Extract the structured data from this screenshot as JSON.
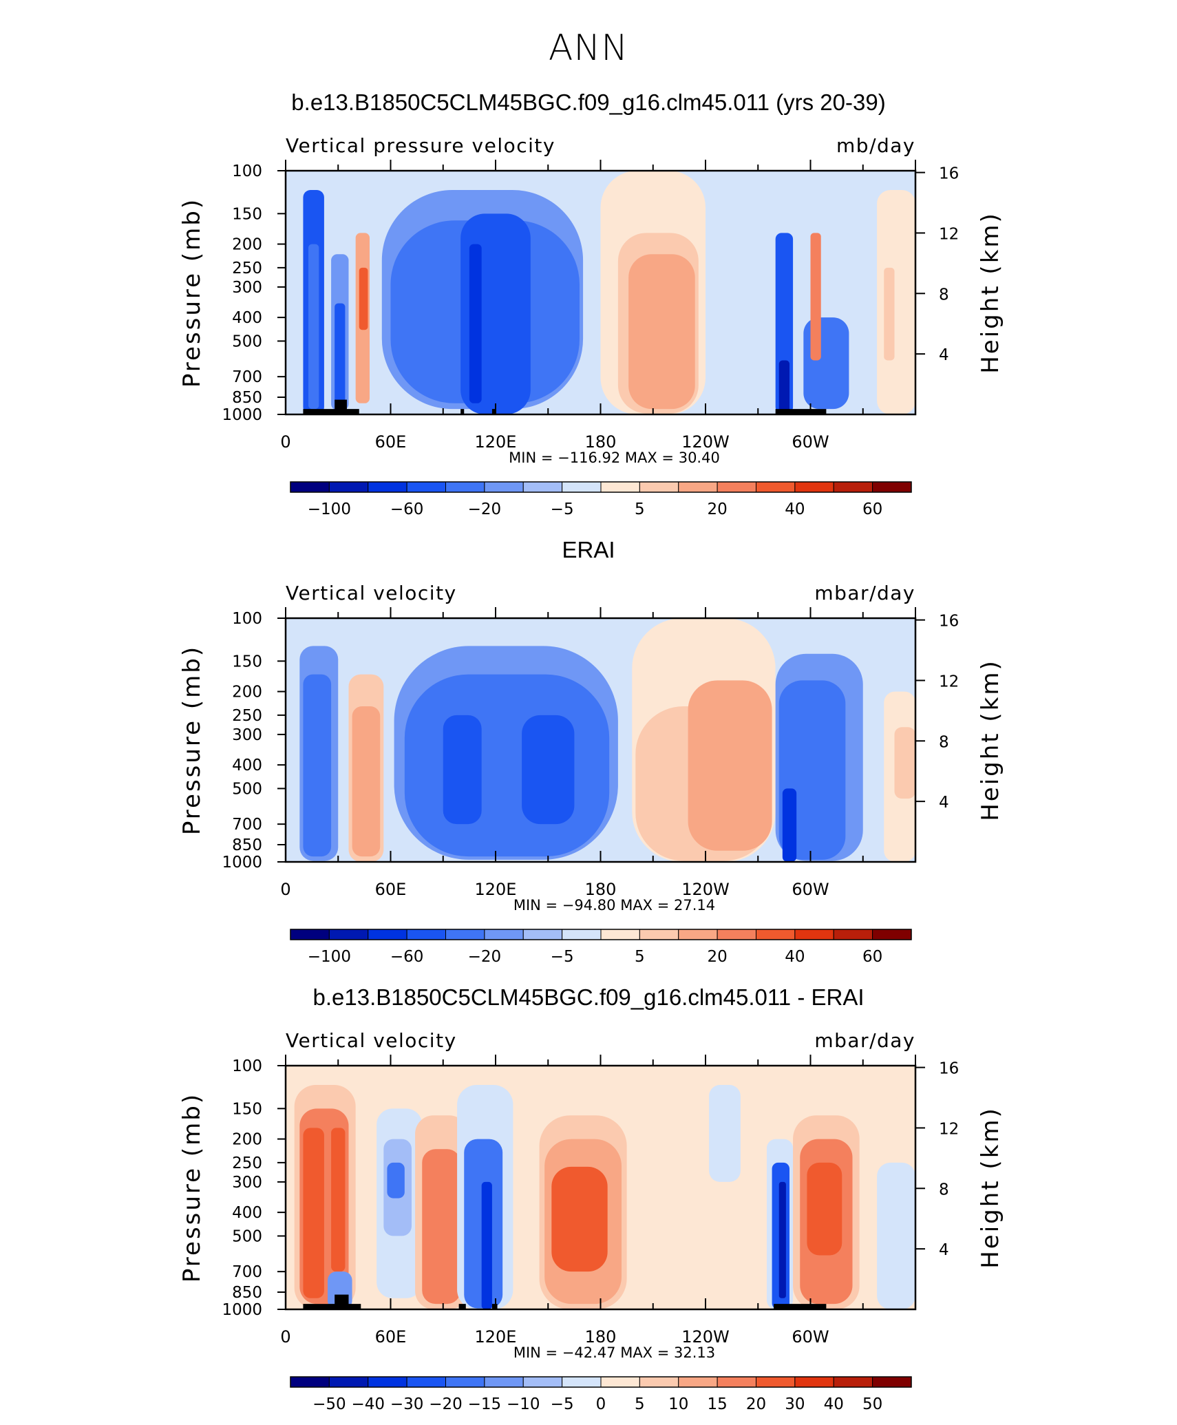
{
  "main_title": "ANN",
  "colors": {
    "model_bar": [
      "#00007f",
      "#0019b2",
      "#0033e0",
      "#1a55f2",
      "#3f75f5",
      "#6f97f5",
      "#a3bdf7",
      "#d4e4fa",
      "#fde7d4",
      "#fbcaaf",
      "#f8a785",
      "#f4805d",
      "#f05a2e",
      "#e1350f",
      "#b81f0a",
      "#7f0000"
    ],
    "diff_bar": [
      "#00007f",
      "#0019b2",
      "#0033e0",
      "#1a55f2",
      "#3f75f5",
      "#6f97f5",
      "#a3bdf7",
      "#d4e4fa",
      "#fde7d4",
      "#fbcaaf",
      "#f8a785",
      "#f4805d",
      "#f05a2e",
      "#e1350f",
      "#b81f0a",
      "#7f0000"
    ]
  },
  "chart_data": [
    {
      "type": "heatmap",
      "title": "b.e13.B1850C5CLM45BGC.f09_g16.clm45.011 (yrs 20-39)",
      "left_label": "Vertical pressure velocity",
      "right_label": "mb/day",
      "ylabel": "Pressure (mb)",
      "y2label": "Height (km)",
      "x_ticks": [
        "0",
        "60E",
        "120E",
        "180",
        "120W",
        "60W"
      ],
      "x_tick_values": [
        0,
        60,
        120,
        180,
        240,
        300
      ],
      "xlim": [
        0,
        360
      ],
      "y_ticks": [
        "100",
        "150",
        "200",
        "250",
        "300",
        "400",
        "500",
        "700",
        "850",
        "1000"
      ],
      "y_tick_values": [
        100,
        150,
        200,
        250,
        300,
        400,
        500,
        700,
        850,
        1000
      ],
      "ylim": [
        1000,
        100
      ],
      "y2_ticks": [
        "16",
        "12",
        "8",
        "4"
      ],
      "y2_tick_values": [
        16,
        12,
        8,
        4
      ],
      "y_scale": "log",
      "stats": {
        "min_label": "MIN",
        "min": "−116.92",
        "max_label": "MAX",
        "max": "30.40"
      },
      "colorbar_labels": [
        "−100",
        "−60",
        "−20",
        "−5",
        "5",
        "20",
        "40",
        "60"
      ],
      "colorbar_levels": [
        -120,
        -100,
        -80,
        -60,
        -40,
        -20,
        -10,
        -5,
        0,
        5,
        10,
        20,
        30,
        40,
        50,
        60,
        70
      ],
      "palette": "model_bar",
      "fields": [
        {
          "lon": [
            10,
            22
          ],
          "p": [
            120,
            1000
          ],
          "level": 3
        },
        {
          "lon": [
            13,
            19
          ],
          "p": [
            200,
            950
          ],
          "level": 4
        },
        {
          "lon": [
            4,
            8
          ],
          "p": [
            150,
            1000
          ],
          "level": 7
        },
        {
          "lon": [
            24,
            38
          ],
          "p": [
            180,
            1000
          ],
          "level": 7
        },
        {
          "lon": [
            26,
            36
          ],
          "p": [
            220,
            960
          ],
          "level": 5
        },
        {
          "lon": [
            28,
            34
          ],
          "p": [
            350,
            960
          ],
          "level": 3
        },
        {
          "lon": [
            40,
            48
          ],
          "p": [
            180,
            900
          ],
          "level": 10
        },
        {
          "lon": [
            42,
            47
          ],
          "p": [
            250,
            450
          ],
          "level": 12
        },
        {
          "lon": [
            48,
            175
          ],
          "p": [
            110,
            1000
          ],
          "level": 7
        },
        {
          "lon": [
            55,
            170
          ],
          "p": [
            120,
            950
          ],
          "level": 5
        },
        {
          "lon": [
            60,
            168
          ],
          "p": [
            160,
            900
          ],
          "level": 4
        },
        {
          "lon": [
            100,
            140
          ],
          "p": [
            150,
            1000
          ],
          "level": 3
        },
        {
          "lon": [
            105,
            112
          ],
          "p": [
            200,
            900
          ],
          "level": 2
        },
        {
          "lon": [
            180,
            240
          ],
          "p": [
            100,
            1000
          ],
          "level": 8
        },
        {
          "lon": [
            190,
            236
          ],
          "p": [
            180,
            990
          ],
          "level": 9
        },
        {
          "lon": [
            196,
            234
          ],
          "p": [
            220,
            950
          ],
          "level": 10
        },
        {
          "lon": [
            278,
            292
          ],
          "p": [
            120,
            1000
          ],
          "level": 7
        },
        {
          "lon": [
            280,
            290
          ],
          "p": [
            180,
            990
          ],
          "level": 3
        },
        {
          "lon": [
            282,
            288
          ],
          "p": [
            600,
            1000
          ],
          "level": 1
        },
        {
          "lon": [
            292,
            330
          ],
          "p": [
            200,
            1000
          ],
          "level": 7
        },
        {
          "lon": [
            296,
            322
          ],
          "p": [
            400,
            950
          ],
          "level": 4
        },
        {
          "lon": [
            300,
            306
          ],
          "p": [
            180,
            600
          ],
          "level": 11
        },
        {
          "lon": [
            338,
            360
          ],
          "p": [
            120,
            1000
          ],
          "level": 8
        },
        {
          "lon": [
            342,
            348
          ],
          "p": [
            250,
            600
          ],
          "level": 9
        }
      ],
      "topography": [
        {
          "lon": [
            10,
            42
          ],
          "p": 950
        },
        {
          "lon": [
            28,
            35
          ],
          "p": 870
        },
        {
          "lon": [
            100,
            102
          ],
          "p": 950
        },
        {
          "lon": [
            118,
            120
          ],
          "p": 950
        },
        {
          "lon": [
            280,
            309
          ],
          "p": 950
        }
      ]
    },
    {
      "type": "heatmap",
      "title": "ERAI",
      "left_label": "Vertical velocity",
      "right_label": "mbar/day",
      "ylabel": "Pressure (mb)",
      "y2label": "Height (km)",
      "x_ticks": [
        "0",
        "60E",
        "120E",
        "180",
        "120W",
        "60W"
      ],
      "x_tick_values": [
        0,
        60,
        120,
        180,
        240,
        300
      ],
      "xlim": [
        0,
        360
      ],
      "y_ticks": [
        "100",
        "150",
        "200",
        "250",
        "300",
        "400",
        "500",
        "700",
        "850",
        "1000"
      ],
      "y_tick_values": [
        100,
        150,
        200,
        250,
        300,
        400,
        500,
        700,
        850,
        1000
      ],
      "ylim": [
        1000,
        100
      ],
      "y2_ticks": [
        "16",
        "12",
        "8",
        "4"
      ],
      "y2_tick_values": [
        16,
        12,
        8,
        4
      ],
      "y_scale": "log",
      "stats": {
        "min_label": "MIN",
        "min": "−94.80",
        "max_label": "MAX",
        "max": "27.14"
      },
      "colorbar_labels": [
        "−100",
        "−60",
        "−20",
        "−5",
        "5",
        "20",
        "40",
        "60"
      ],
      "colorbar_levels": [
        -120,
        -100,
        -80,
        -60,
        -40,
        -20,
        -10,
        -5,
        0,
        5,
        10,
        20,
        30,
        40,
        50,
        60,
        70
      ],
      "palette": "model_bar",
      "fields": [
        {
          "lon": [
            5,
            32
          ],
          "p": [
            110,
            1000
          ],
          "level": 7
        },
        {
          "lon": [
            8,
            30
          ],
          "p": [
            130,
            990
          ],
          "level": 5
        },
        {
          "lon": [
            10,
            26
          ],
          "p": [
            170,
            950
          ],
          "level": 4
        },
        {
          "lon": [
            36,
            56
          ],
          "p": [
            170,
            1000
          ],
          "level": 9
        },
        {
          "lon": [
            38,
            54
          ],
          "p": [
            230,
            950
          ],
          "level": 10
        },
        {
          "lon": [
            58,
            195
          ],
          "p": [
            100,
            1000
          ],
          "level": 7
        },
        {
          "lon": [
            62,
            190
          ],
          "p": [
            130,
            980
          ],
          "level": 5
        },
        {
          "lon": [
            68,
            185
          ],
          "p": [
            170,
            950
          ],
          "level": 4
        },
        {
          "lon": [
            90,
            112
          ],
          "p": [
            250,
            700
          ],
          "level": 3
        },
        {
          "lon": [
            135,
            165
          ],
          "p": [
            250,
            700
          ],
          "level": 3
        },
        {
          "lon": [
            198,
            280
          ],
          "p": [
            100,
            1000
          ],
          "level": 8
        },
        {
          "lon": [
            200,
            278
          ],
          "p": [
            230,
            990
          ],
          "level": 9
        },
        {
          "lon": [
            230,
            278
          ],
          "p": [
            180,
            900
          ],
          "level": 10
        },
        {
          "lon": [
            280,
            340
          ],
          "p": [
            100,
            1000
          ],
          "level": 7
        },
        {
          "lon": [
            280,
            330
          ],
          "p": [
            140,
            990
          ],
          "level": 5
        },
        {
          "lon": [
            282,
            320
          ],
          "p": [
            180,
            980
          ],
          "level": 4
        },
        {
          "lon": [
            284,
            292
          ],
          "p": [
            500,
            1000
          ],
          "level": 2
        },
        {
          "lon": [
            342,
            360
          ],
          "p": [
            200,
            1000
          ],
          "level": 8
        },
        {
          "lon": [
            348,
            360
          ],
          "p": [
            280,
            550
          ],
          "level": 9
        }
      ],
      "topography": []
    },
    {
      "type": "heatmap",
      "title": "b.e13.B1850C5CLM45BGC.f09_g16.clm45.011 - ERAI",
      "left_label": "Vertical velocity",
      "right_label": "mbar/day",
      "ylabel": "Pressure (mb)",
      "y2label": "Height (km)",
      "x_ticks": [
        "0",
        "60E",
        "120E",
        "180",
        "120W",
        "60W"
      ],
      "x_tick_values": [
        0,
        60,
        120,
        180,
        240,
        300
      ],
      "xlim": [
        0,
        360
      ],
      "y_ticks": [
        "100",
        "150",
        "200",
        "250",
        "300",
        "400",
        "500",
        "700",
        "850",
        "1000"
      ],
      "y_tick_values": [
        100,
        150,
        200,
        250,
        300,
        400,
        500,
        700,
        850,
        1000
      ],
      "ylim": [
        1000,
        100
      ],
      "y2_ticks": [
        "16",
        "12",
        "8",
        "4"
      ],
      "y2_tick_values": [
        16,
        12,
        8,
        4
      ],
      "y_scale": "log",
      "stats": {
        "min_label": "MIN",
        "min": "−42.47",
        "max_label": "MAX",
        "max": "32.13"
      },
      "colorbar_labels": [
        "−50",
        "−40",
        "−30",
        "−20",
        "−15",
        "−10",
        "−5",
        "0",
        "5",
        "10",
        "15",
        "20",
        "30",
        "40",
        "50"
      ],
      "colorbar_levels": [
        -60,
        -50,
        -40,
        -30,
        -20,
        -15,
        -10,
        -5,
        0,
        5,
        10,
        15,
        20,
        30,
        40,
        50,
        60
      ],
      "palette": "diff_bar",
      "fields": [
        {
          "lon": [
            0,
            360
          ],
          "p": [
            100,
            1000
          ],
          "level": 8
        },
        {
          "lon": [
            5,
            40
          ],
          "p": [
            120,
            1000
          ],
          "level": 9
        },
        {
          "lon": [
            8,
            36
          ],
          "p": [
            150,
            950
          ],
          "level": 11
        },
        {
          "lon": [
            10,
            22
          ],
          "p": [
            180,
            900
          ],
          "level": 12
        },
        {
          "lon": [
            26,
            34
          ],
          "p": [
            180,
            700
          ],
          "level": 12
        },
        {
          "lon": [
            24,
            38
          ],
          "p": [
            700,
            1000
          ],
          "level": 5
        },
        {
          "lon": [
            52,
            78
          ],
          "p": [
            150,
            900
          ],
          "level": 7
        },
        {
          "lon": [
            56,
            72
          ],
          "p": [
            200,
            500
          ],
          "level": 6
        },
        {
          "lon": [
            58,
            68
          ],
          "p": [
            250,
            350
          ],
          "level": 4
        },
        {
          "lon": [
            74,
            104
          ],
          "p": [
            160,
            1000
          ],
          "level": 9
        },
        {
          "lon": [
            78,
            100
          ],
          "p": [
            220,
            950
          ],
          "level": 11
        },
        {
          "lon": [
            98,
            130
          ],
          "p": [
            120,
            1000
          ],
          "level": 7
        },
        {
          "lon": [
            102,
            124
          ],
          "p": [
            200,
            990
          ],
          "level": 4
        },
        {
          "lon": [
            112,
            118
          ],
          "p": [
            300,
            1000
          ],
          "level": 2
        },
        {
          "lon": [
            145,
            195
          ],
          "p": [
            160,
            1000
          ],
          "level": 9
        },
        {
          "lon": [
            148,
            192
          ],
          "p": [
            200,
            950
          ],
          "level": 10
        },
        {
          "lon": [
            152,
            184
          ],
          "p": [
            260,
            700
          ],
          "level": 12
        },
        {
          "lon": [
            242,
            260
          ],
          "p": [
            120,
            300
          ],
          "level": 7
        },
        {
          "lon": [
            275,
            290
          ],
          "p": [
            200,
            1000
          ],
          "level": 7
        },
        {
          "lon": [
            278,
            288
          ],
          "p": [
            250,
            1000
          ],
          "level": 3
        },
        {
          "lon": [
            282,
            286
          ],
          "p": [
            300,
            900
          ],
          "level": 1
        },
        {
          "lon": [
            290,
            328
          ],
          "p": [
            160,
            1000
          ],
          "level": 9
        },
        {
          "lon": [
            294,
            324
          ],
          "p": [
            200,
            950
          ],
          "level": 11
        },
        {
          "lon": [
            298,
            318
          ],
          "p": [
            250,
            600
          ],
          "level": 12
        },
        {
          "lon": [
            338,
            360
          ],
          "p": [
            250,
            1000
          ],
          "level": 7
        }
      ],
      "topography": [
        {
          "lon": [
            10,
            43
          ],
          "p": 950
        },
        {
          "lon": [
            28,
            36
          ],
          "p": 870
        },
        {
          "lon": [
            99,
            103
          ],
          "p": 950
        },
        {
          "lon": [
            118,
            121
          ],
          "p": 950
        },
        {
          "lon": [
            279,
            309
          ],
          "p": 950
        }
      ]
    }
  ]
}
